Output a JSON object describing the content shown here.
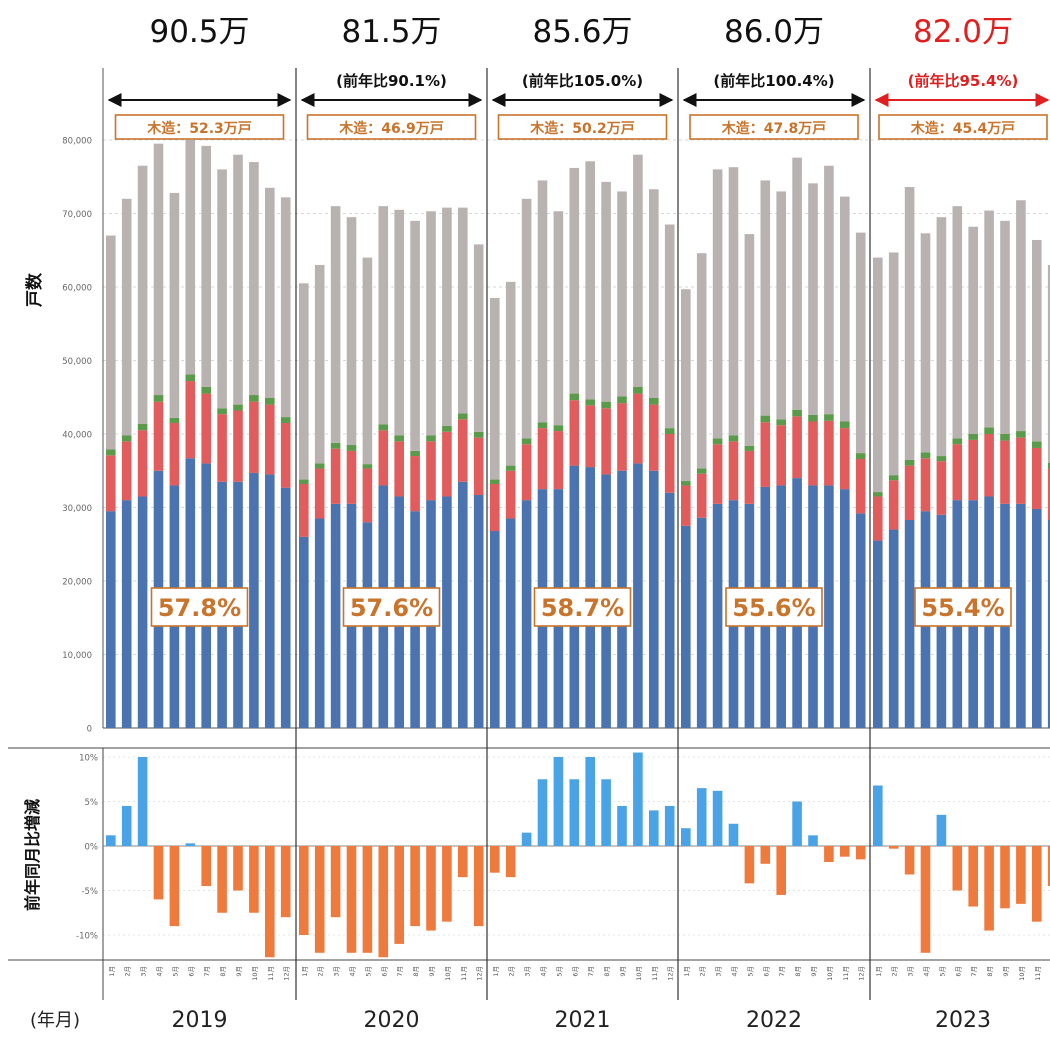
{
  "chart_data": {
    "type": "bar",
    "stacked": true,
    "y_axis_label": "戸数",
    "sub_y_axis_label": "前年同月比増減",
    "x_axis_label": "(年月)",
    "month_labels": [
      "1月",
      "2月",
      "3月",
      "4月",
      "5月",
      "6月",
      "7月",
      "8月",
      "9月",
      "10月",
      "11月",
      "12月"
    ],
    "ylim": [
      0,
      80000
    ],
    "y_ticks": [
      "0",
      "10,000",
      "20,000",
      "30,000",
      "40,000",
      "50,000",
      "60,000",
      "70,000",
      "80,000"
    ],
    "sub_ylim": [
      -13,
      11
    ],
    "sub_y_ticks": [
      {
        "v": 10,
        "label": "10%"
      },
      {
        "v": 5,
        "label": "5%"
      },
      {
        "v": 0,
        "label": "0%"
      },
      {
        "v": -5,
        "label": "-5%"
      },
      {
        "v": -10,
        "label": "-10%"
      }
    ],
    "colors": {
      "blue": "#4a73b0",
      "red": "#e15c5c",
      "green": "#5a9a4a",
      "gray": "#b8b2b0",
      "pos": "#4aa3e6",
      "neg": "#ee7a3e",
      "orange_box": "#c8742c",
      "highlight": "#e02020"
    },
    "years": [
      {
        "year": "2019",
        "total": "90.5万",
        "yoy": "",
        "wood": "木造：52.3万戸",
        "wood_share": "57.8%",
        "highlight": false,
        "blue": [
          29500,
          31000,
          31500,
          35000,
          33000,
          36700,
          36000,
          33500,
          33500,
          34700,
          34500,
          32700
        ],
        "red": [
          7600,
          8000,
          9000,
          9400,
          8500,
          10500,
          9500,
          9200,
          9700,
          9700,
          9500,
          8800
        ],
        "green": [
          800,
          800,
          900,
          900,
          700,
          900,
          900,
          800,
          800,
          900,
          900,
          800
        ],
        "total_units": [
          67000,
          72000,
          76500,
          79500,
          72800,
          80000,
          79200,
          76000,
          78000,
          77000,
          73500,
          72200
        ],
        "yoy_change": [
          1.2,
          4.5,
          10,
          -6,
          -9,
          0.3,
          -4.5,
          -7.5,
          -5,
          -7.5,
          -12.5,
          -8
        ]
      },
      {
        "year": "2020",
        "total": "81.5万",
        "yoy": "(前年比90.1%)",
        "wood": "木造：46.9万戸",
        "wood_share": "57.6%",
        "highlight": false,
        "blue": [
          26000,
          28500,
          30500,
          30500,
          28000,
          33000,
          31500,
          29500,
          31000,
          31500,
          33500,
          31700
        ],
        "red": [
          7200,
          6800,
          7500,
          7200,
          7300,
          7500,
          7500,
          7500,
          8000,
          8800,
          8500,
          7800
        ],
        "green": [
          600,
          700,
          800,
          800,
          600,
          800,
          800,
          700,
          800,
          800,
          800,
          800
        ],
        "total_units": [
          60500,
          63000,
          71000,
          69500,
          64000,
          71000,
          70500,
          69000,
          70300,
          70800,
          70800,
          65800
        ],
        "yoy_change": [
          -10,
          -12,
          -8,
          -12,
          -12,
          -12.5,
          -11,
          -9,
          -9.5,
          -8.5,
          -3.5,
          -9
        ]
      },
      {
        "year": "2021",
        "total": "85.6万",
        "yoy": "(前年比105.0%)",
        "wood": "木造：50.2万戸",
        "wood_share": "58.7%",
        "highlight": false,
        "blue": [
          26800,
          28500,
          31000,
          32500,
          32500,
          35700,
          35500,
          34500,
          35000,
          36000,
          35000,
          32000
        ],
        "red": [
          6400,
          6500,
          7600,
          8300,
          7900,
          8900,
          8400,
          9000,
          9200,
          9500,
          9000,
          8000
        ],
        "green": [
          600,
          700,
          800,
          800,
          800,
          900,
          800,
          900,
          900,
          900,
          900,
          800
        ],
        "total_units": [
          58500,
          60700,
          72000,
          74500,
          70300,
          76200,
          77100,
          74300,
          73000,
          78000,
          73300,
          68500
        ],
        "yoy_change": [
          -3,
          -3.5,
          1.5,
          7.5,
          10,
          7.5,
          10,
          7.5,
          4.5,
          10.5,
          4,
          4.5
        ]
      },
      {
        "year": "2022",
        "total": "86.0万",
        "yoy": "(前年比100.4%)",
        "wood": "木造：47.8万戸",
        "wood_share": "55.6%",
        "highlight": false,
        "blue": [
          27500,
          28600,
          30500,
          31000,
          30500,
          32800,
          33000,
          34000,
          33000,
          33000,
          32500,
          29200
        ],
        "red": [
          5500,
          6000,
          8100,
          8000,
          7200,
          8800,
          8200,
          8400,
          8700,
          8800,
          8300,
          7400
        ],
        "green": [
          600,
          700,
          800,
          800,
          700,
          900,
          800,
          900,
          900,
          900,
          900,
          800
        ],
        "total_units": [
          59700,
          64600,
          76000,
          76300,
          67200,
          74500,
          73000,
          77600,
          74100,
          76500,
          72300,
          67400
        ],
        "yoy_change": [
          2,
          6.5,
          6.2,
          2.5,
          -4.2,
          -2,
          -5.5,
          5,
          1.2,
          -1.8,
          -1.2,
          -1.5
        ]
      },
      {
        "year": "2023",
        "total": "82.0万",
        "yoy": "(前年比95.4%)",
        "wood": "木造：45.4万戸",
        "wood_share": "55.4%",
        "highlight": true,
        "blue": [
          25500,
          27000,
          28300,
          29500,
          29000,
          31000,
          31000,
          31500,
          30500,
          30500,
          29800,
          28300
        ],
        "red": [
          6000,
          6700,
          7400,
          7200,
          7300,
          7600,
          8200,
          8500,
          8600,
          9000,
          8300,
          7000
        ],
        "green": [
          600,
          700,
          800,
          800,
          700,
          800,
          800,
          900,
          900,
          900,
          900,
          800
        ],
        "total_units": [
          64000,
          64700,
          73600,
          67300,
          69500,
          71000,
          68200,
          70400,
          69000,
          71800,
          66400,
          63000
        ],
        "yoy_change": [
          6.8,
          -0.3,
          -3.2,
          -12,
          3.5,
          -5,
          -6.8,
          -9.5,
          -7,
          -6.5,
          -8.5,
          -4.5
        ]
      }
    ]
  }
}
